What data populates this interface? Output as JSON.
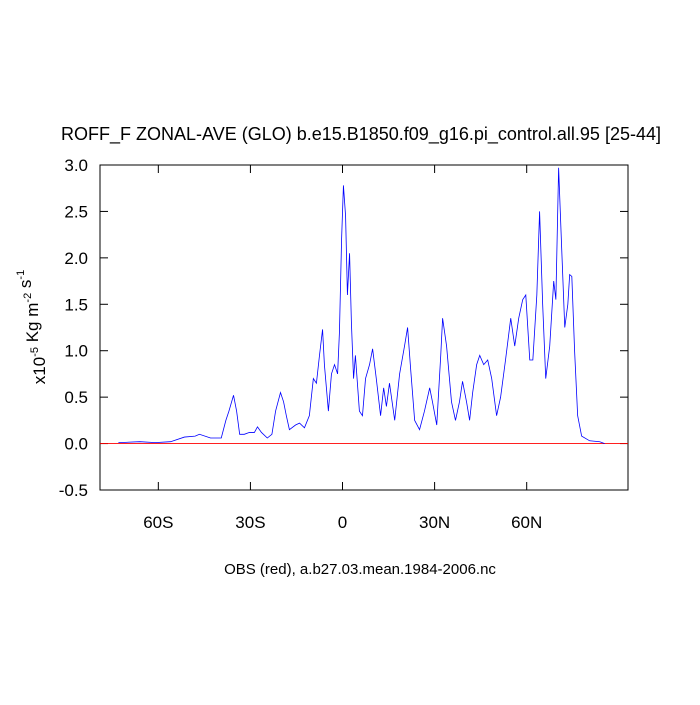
{
  "chart_data": {
    "type": "line",
    "title": "ROFF_F ZONAL-AVE (GLO) b.e15.B1850.f09_g16.pi_control.all.95 [25-44]",
    "xlabel": "OBS (red), a.b27.03.mean.1984-2006.nc",
    "ylabel": [
      [
        "x10",
        "-5"
      ],
      [
        " Kg m",
        "-2"
      ],
      [
        " s",
        "-1"
      ]
    ],
    "xlim": [
      -79,
      93
    ],
    "ylim": [
      -0.5,
      3.0
    ],
    "xticks": [
      {
        "value": -60,
        "label": "60S"
      },
      {
        "value": -30,
        "label": "30S"
      },
      0,
      {
        "value": 30,
        "label": "30N"
      },
      {
        "value": 60,
        "label": "60N"
      }
    ],
    "yticks": [
      -0.5,
      {
        "value": 0,
        "label": "0.0"
      },
      0.5,
      {
        "value": 1,
        "label": "1.0"
      },
      1.5,
      {
        "value": 2,
        "label": "2.0"
      },
      2.5,
      {
        "value": 3,
        "label": "3.0"
      }
    ],
    "series": [
      {
        "color": "#0000ff",
        "x": [
          -73,
          -66,
          -61,
          -56,
          -51.5,
          -48,
          -46.6,
          -43,
          -39.5,
          -38,
          -37,
          -35.5,
          -34.5,
          -33.5,
          -32,
          -30.3,
          -28.7,
          -27.7,
          -26.4,
          -24.5,
          -23,
          -21.8,
          -20.2,
          -19.2,
          -18.3,
          -17.3,
          -15.3,
          -14,
          -12.4,
          -10.8,
          -9.5,
          -8.5,
          -7.5,
          -6.5,
          -5.9,
          -4.6,
          -3.6,
          -2.6,
          -1.6,
          -1,
          -0.3,
          0.3,
          1,
          1.6,
          2.3,
          2.9,
          3.6,
          4.2,
          5.5,
          6.5,
          7.5,
          8.8,
          9.8,
          11,
          12.4,
          13.4,
          14.3,
          15.3,
          17,
          18.6,
          20.2,
          21.2,
          22.2,
          23.5,
          25.1,
          26.7,
          28.4,
          29.3,
          30.7,
          32,
          32.6,
          33.9,
          35.5,
          36.8,
          38.1,
          39.1,
          40.4,
          41.4,
          42.4,
          43.7,
          44.7,
          46,
          47.3,
          48.6,
          50.2,
          51.5,
          53.1,
          54.8,
          56.1,
          57.4,
          58.7,
          59.7,
          61,
          62,
          63.3,
          64.2,
          65.2,
          66.2,
          67.5,
          68.8,
          69.5,
          70.4,
          71.4,
          72.4,
          73.4,
          74,
          74.7,
          75.6,
          76.6,
          77.9,
          80.5,
          83.8,
          85.4
        ],
        "values": [
          0.01,
          0.02,
          0.01,
          0.02,
          0.07,
          0.08,
          0.1,
          0.06,
          0.06,
          0.25,
          0.35,
          0.52,
          0.35,
          0.1,
          0.1,
          0.12,
          0.12,
          0.18,
          0.12,
          0.06,
          0.1,
          0.35,
          0.55,
          0.45,
          0.3,
          0.15,
          0.2,
          0.22,
          0.17,
          0.3,
          0.7,
          0.65,
          0.95,
          1.23,
          0.85,
          0.35,
          0.75,
          0.85,
          0.75,
          1.2,
          2.2,
          2.78,
          2.45,
          1.6,
          2.05,
          1.3,
          0.7,
          0.95,
          0.35,
          0.3,
          0.7,
          0.85,
          1.02,
          0.7,
          0.3,
          0.6,
          0.4,
          0.65,
          0.25,
          0.75,
          1.05,
          1.25,
          0.8,
          0.25,
          0.15,
          0.35,
          0.6,
          0.45,
          0.2,
          0.95,
          1.35,
          1.05,
          0.45,
          0.25,
          0.45,
          0.67,
          0.45,
          0.25,
          0.55,
          0.85,
          0.95,
          0.85,
          0.9,
          0.7,
          0.3,
          0.5,
          0.9,
          1.35,
          1.05,
          1.35,
          1.55,
          1.6,
          0.9,
          0.9,
          1.6,
          2.5,
          1.5,
          0.7,
          1.05,
          1.75,
          1.55,
          2.97,
          2.1,
          1.25,
          1.5,
          1.82,
          1.8,
          1.0,
          0.3,
          0.08,
          0.03,
          0.02,
          0.0
        ]
      },
      {
        "color": "#ff0000",
        "x": [
          -79,
          93
        ],
        "values": [
          0,
          0
        ]
      }
    ]
  }
}
